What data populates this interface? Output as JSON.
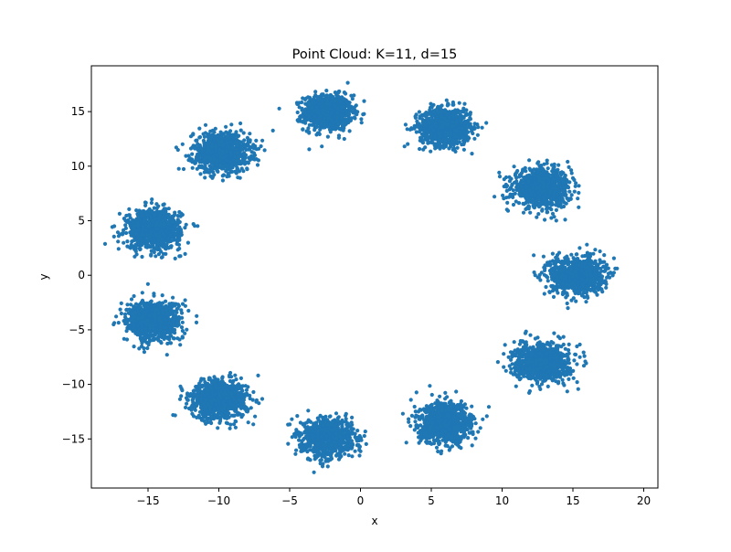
{
  "chart_data": {
    "type": "scatter",
    "title": "Point Cloud: K=11, d=15",
    "xlabel": "x",
    "ylabel": "y",
    "xlim": [
      -19.0,
      21.0
    ],
    "ylim": [
      -19.5,
      19.2
    ],
    "xticks": [
      -15,
      -10,
      -5,
      0,
      5,
      10,
      15,
      20
    ],
    "yticks": [
      -15,
      -10,
      -5,
      0,
      5,
      10,
      15
    ],
    "xtick_labels": [
      "−15",
      "−10",
      "−5",
      "0",
      "5",
      "10",
      "15",
      "20"
    ],
    "ytick_labels": [
      "−15",
      "−10",
      "−5",
      "0",
      "5",
      "10",
      "15"
    ],
    "grid": false,
    "legend": "none",
    "point_color": "#1f77b4",
    "clusters": [
      {
        "center": [
          -2.3,
          14.9
        ],
        "spread": [
          0.85,
          0.8
        ]
      },
      {
        "center": [
          6.0,
          13.6
        ],
        "spread": [
          0.9,
          0.85
        ]
      },
      {
        "center": [
          -9.8,
          11.3
        ],
        "spread": [
          1.0,
          0.9
        ]
      },
      {
        "center": [
          12.8,
          8.0
        ],
        "spread": [
          1.0,
          0.85
        ]
      },
      {
        "center": [
          -14.6,
          4.2
        ],
        "spread": [
          0.95,
          0.9
        ]
      },
      {
        "center": [
          15.3,
          0.0
        ],
        "spread": [
          0.95,
          0.85
        ]
      },
      {
        "center": [
          -14.6,
          -4.2
        ],
        "spread": [
          0.95,
          0.9
        ]
      },
      {
        "center": [
          12.8,
          -8.0
        ],
        "spread": [
          0.95,
          0.85
        ]
      },
      {
        "center": [
          -10.0,
          -11.4
        ],
        "spread": [
          1.0,
          0.9
        ]
      },
      {
        "center": [
          6.0,
          -13.6
        ],
        "spread": [
          0.95,
          0.9
        ]
      },
      {
        "center": [
          -2.3,
          -14.9
        ],
        "spread": [
          0.9,
          0.85
        ]
      }
    ]
  }
}
